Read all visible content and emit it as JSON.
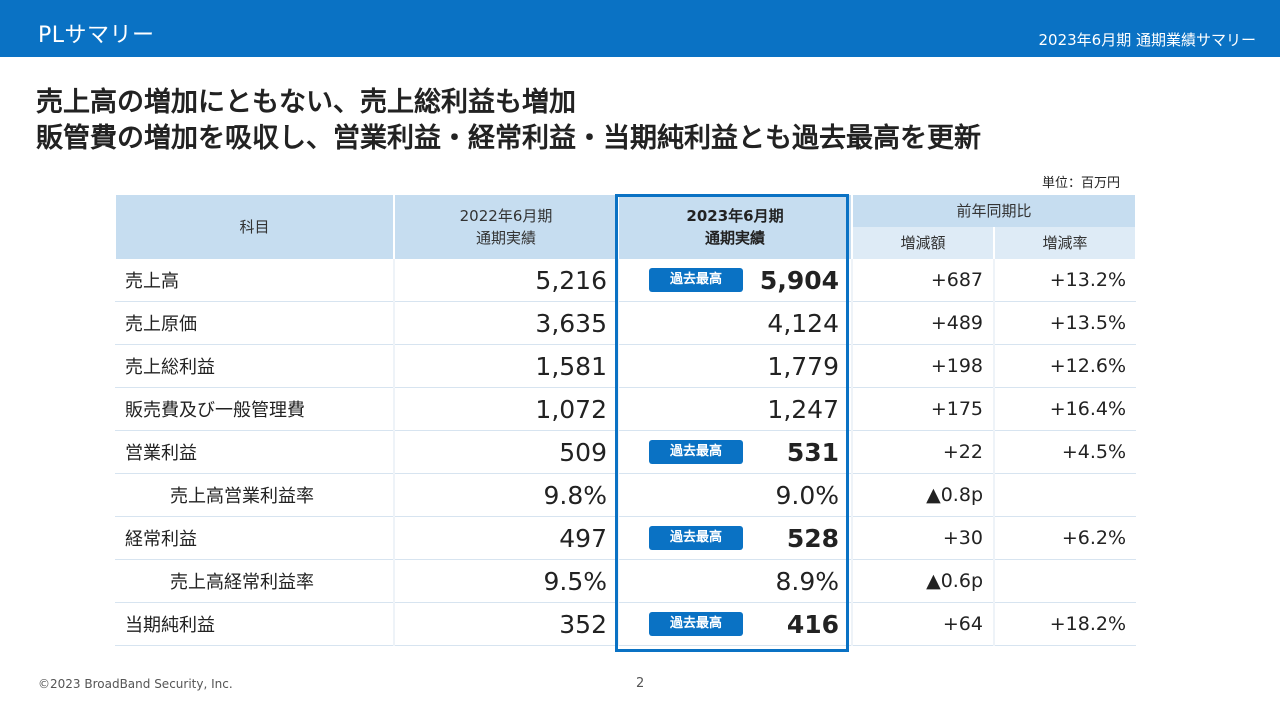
{
  "header": {
    "title": "PLサマリー",
    "subtitle": "2023年6月期 通期業績サマリー"
  },
  "headline": {
    "line1": "売上高の増加にともない、売上総利益も増加",
    "line2": "販管費の増加を吸収し、営業利益・経常利益・当期純利益とも過去最高を更新"
  },
  "unit": "単位：百万円",
  "table": {
    "col_item": "科目",
    "col_prev": "2022年6月期\n通期実績",
    "col_cur": "2023年6月期\n通期実績",
    "col_yoy": "前年同期比",
    "col_diff": "増減額",
    "col_rate": "増減率",
    "rows": [
      {
        "item": "売上高",
        "prev": "5,216",
        "cur": "5,904",
        "badge": "過去最高",
        "diff": "+687",
        "rate": "+13.2%"
      },
      {
        "item": "売上原価",
        "prev": "3,635",
        "cur": "4,124",
        "badge": "",
        "diff": "+489",
        "rate": "+13.5%"
      },
      {
        "item": "売上総利益",
        "prev": "1,581",
        "cur": "1,779",
        "badge": "",
        "diff": "+198",
        "rate": "+12.6%"
      },
      {
        "item": "販売費及び一般管理費",
        "prev": "1,072",
        "cur": "1,247",
        "badge": "",
        "diff": "+175",
        "rate": "+16.4%"
      },
      {
        "item": "営業利益",
        "prev": "509",
        "cur": "531",
        "badge": "過去最高",
        "diff": "+22",
        "rate": "+4.5%"
      },
      {
        "item": "売上高営業利益率",
        "prev": "9.8%",
        "cur": "9.0%",
        "badge": "",
        "diff": "▲0.8p",
        "rate": ""
      },
      {
        "item": "経常利益",
        "prev": "497",
        "cur": "528",
        "badge": "過去最高",
        "diff": "+30",
        "rate": "+6.2%"
      },
      {
        "item": "売上高経常利益率",
        "prev": "9.5%",
        "cur": "8.9%",
        "badge": "",
        "diff": "▲0.6p",
        "rate": ""
      },
      {
        "item": "当期純利益",
        "prev": "352",
        "cur": "416",
        "badge": "過去最高",
        "diff": "+64",
        "rate": "+18.2%"
      }
    ]
  },
  "footer": {
    "copyright": "©2023 BroadBand Security, Inc.",
    "page": "2"
  },
  "colors": {
    "brand_blue": "#0a72c4",
    "header_fill": "#c6ddf0"
  }
}
